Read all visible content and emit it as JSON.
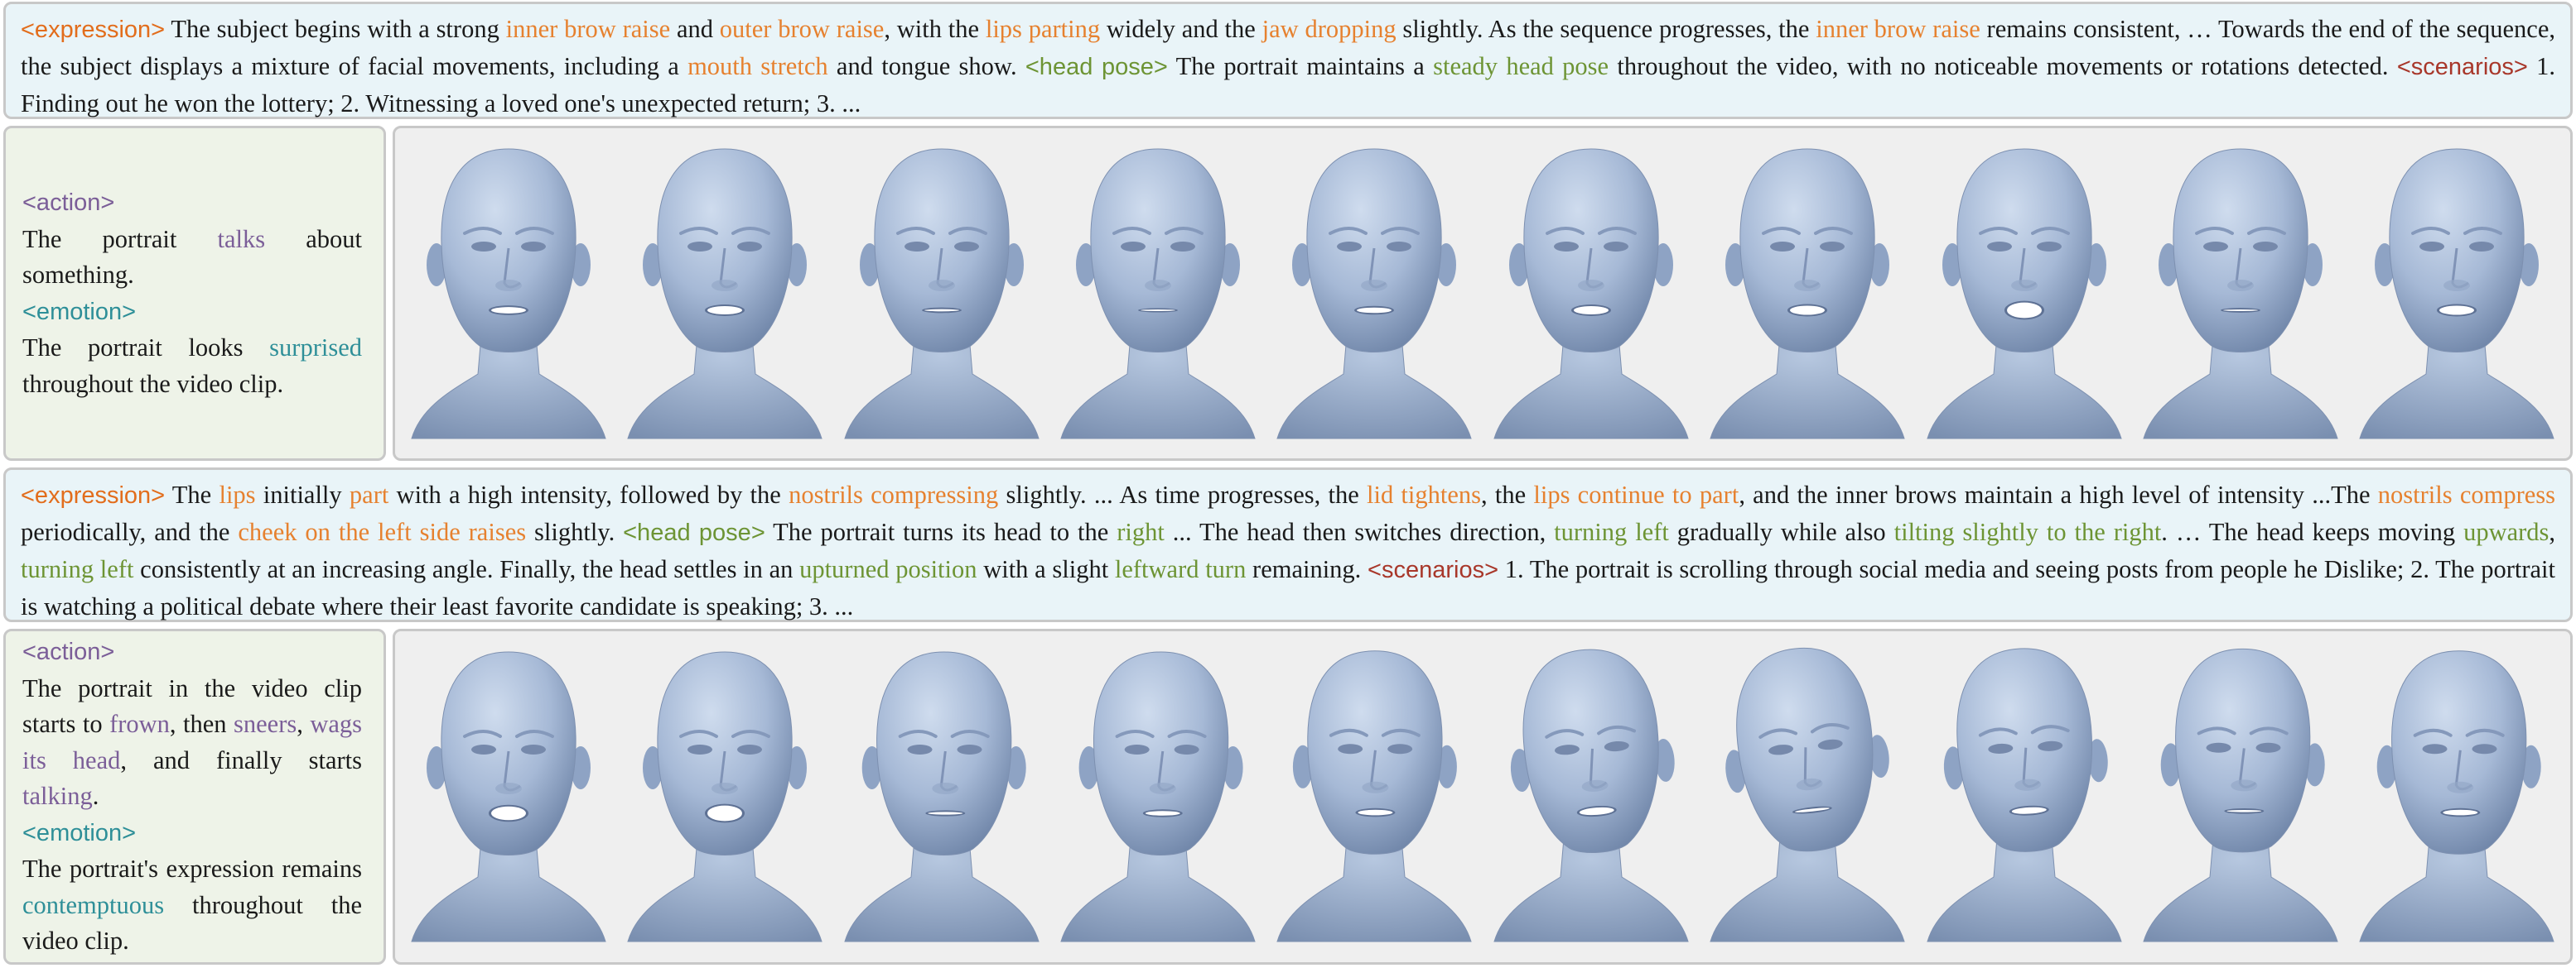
{
  "colors": {
    "expression_tag": "#e26d1c",
    "head_pose_tag": "#6d9434",
    "scenarios_tag": "#a8372a",
    "action_tag": "#7b5e98",
    "emotion_tag": "#2e8f98",
    "head_mesh": "#a9bcd8"
  },
  "row1": {
    "desc": [
      {
        "t": "<expression>",
        "c": "tag t-exp"
      },
      {
        "t": " The subject begins with a strong "
      },
      {
        "t": "inner brow raise",
        "c": "orange"
      },
      {
        "t": " and "
      },
      {
        "t": "outer brow raise",
        "c": "orange"
      },
      {
        "t": ", with the "
      },
      {
        "t": "lips parting",
        "c": "orange"
      },
      {
        "t": " widely and the "
      },
      {
        "t": "jaw dropping",
        "c": "orange"
      },
      {
        "t": " slightly. As the sequence progresses, the "
      },
      {
        "t": "inner brow raise",
        "c": "orange"
      },
      {
        "t": " remains consistent, … Towards the end of the sequence, the subject displays a mixture of facial movements, including a "
      },
      {
        "t": "mouth stretch",
        "c": "orange"
      },
      {
        "t": " and tongue show. "
      },
      {
        "t": "<head pose>",
        "c": "tag t-pose"
      },
      {
        "t": " The portrait maintains a "
      },
      {
        "t": "steady head pose",
        "c": "green-t"
      },
      {
        "t": " throughout the video, with no noticeable movements or rotations detected. "
      },
      {
        "t": "<scenarios>",
        "c": "tag t-scen"
      },
      {
        "t": " 1. Finding out he won the lottery; 2. Witnessing a loved one's unexpected return; 3. ..."
      }
    ],
    "side": [
      {
        "t": "<action>",
        "c": "tag t-act",
        "br": true
      },
      {
        "t": "The portrait "
      },
      {
        "t": "talks",
        "c": "purple"
      },
      {
        "t": " about something.",
        "br": true
      },
      {
        "t": "<emotion>",
        "c": "tag t-emo",
        "br": true
      },
      {
        "t": "The portrait looks "
      },
      {
        "t": "surprised",
        "c": "teal"
      },
      {
        "t": " throughout the video clip."
      }
    ],
    "faces": [
      {
        "name": "frame-1",
        "yaw": 0,
        "pitch": 0,
        "roll": 0,
        "mouth": 0.35
      },
      {
        "name": "frame-2",
        "yaw": 0,
        "pitch": 0,
        "roll": 0,
        "mouth": 0.45
      },
      {
        "name": "frame-3",
        "yaw": 0,
        "pitch": 0,
        "roll": 0,
        "mouth": 0.12
      },
      {
        "name": "frame-4",
        "yaw": 0,
        "pitch": 0,
        "roll": 0,
        "mouth": 0.05
      },
      {
        "name": "frame-5",
        "yaw": 0,
        "pitch": 0,
        "roll": 0,
        "mouth": 0.3
      },
      {
        "name": "frame-6",
        "yaw": 0,
        "pitch": 0,
        "roll": 0,
        "mouth": 0.45
      },
      {
        "name": "frame-7",
        "yaw": 0,
        "pitch": 0,
        "roll": 0,
        "mouth": 0.5
      },
      {
        "name": "frame-8",
        "yaw": 0,
        "pitch": 0,
        "roll": 0,
        "mouth": 0.85
      },
      {
        "name": "frame-9",
        "yaw": 0,
        "pitch": 0,
        "roll": 0,
        "mouth": 0.08
      },
      {
        "name": "frame-10",
        "yaw": 0,
        "pitch": 0,
        "roll": 0,
        "mouth": 0.5
      }
    ]
  },
  "row2": {
    "desc": [
      {
        "t": "<expression>",
        "c": "tag t-exp"
      },
      {
        "t": " The "
      },
      {
        "t": "lips",
        "c": "orange"
      },
      {
        "t": " initially "
      },
      {
        "t": "part",
        "c": "orange"
      },
      {
        "t": " with a high intensity, followed by the "
      },
      {
        "t": "nostrils compressing",
        "c": "orange"
      },
      {
        "t": " slightly. ... As time progresses, the "
      },
      {
        "t": "lid tightens",
        "c": "orange"
      },
      {
        "t": ", the "
      },
      {
        "t": "lips continue to part",
        "c": "orange"
      },
      {
        "t": ", and the inner brows maintain a high level of intensity ...The "
      },
      {
        "t": "nostrils compress",
        "c": "orange"
      },
      {
        "t": " periodically, and the "
      },
      {
        "t": "cheek on the left side raises",
        "c": "orange"
      },
      {
        "t": " slightly. "
      },
      {
        "t": "<head pose>",
        "c": "tag t-pose"
      },
      {
        "t": " The portrait turns its head to the "
      },
      {
        "t": "right",
        "c": "green-t"
      },
      {
        "t": " ... The head then switches direction, "
      },
      {
        "t": "turning left",
        "c": "green-t"
      },
      {
        "t": " gradually while also "
      },
      {
        "t": "tilting slightly to the right",
        "c": "green-t"
      },
      {
        "t": ". … The head keeps moving "
      },
      {
        "t": "upwards",
        "c": "green-t"
      },
      {
        "t": ", "
      },
      {
        "t": "turning left",
        "c": "green-t"
      },
      {
        "t": " consistently at an increasing angle. Finally, the head settles in an "
      },
      {
        "t": "upturned position",
        "c": "green-t"
      },
      {
        "t": " with a slight "
      },
      {
        "t": "leftward turn",
        "c": "green-t"
      },
      {
        "t": " remaining. "
      },
      {
        "t": "<scenarios>",
        "c": "tag t-scen"
      },
      {
        "t": " 1. The portrait is scrolling through social media and seeing posts from people he Dislike; 2. The portrait is watching a political debate where their least favorite candidate is speaking; 3. ..."
      }
    ],
    "side": [
      {
        "t": "<action>",
        "c": "tag t-act",
        "br": true
      },
      {
        "t": "The portrait in the video clip starts to "
      },
      {
        "t": "frown",
        "c": "purple"
      },
      {
        "t": ", then "
      },
      {
        "t": "sneers",
        "c": "purple"
      },
      {
        "t": ", "
      },
      {
        "t": "wags its head",
        "c": "purple"
      },
      {
        "t": ", and finally starts "
      },
      {
        "t": "talking",
        "c": "purple"
      },
      {
        "t": ".",
        "br": true
      },
      {
        "t": "<emotion>",
        "c": "tag t-emo",
        "br": true
      },
      {
        "t": "The portrait's expression remains "
      },
      {
        "t": "contemptuous",
        "c": "teal"
      },
      {
        "t": " throughout the video clip."
      }
    ],
    "faces": [
      {
        "name": "frame-1",
        "yaw": 0,
        "pitch": 0,
        "roll": 0,
        "mouth": 0.75
      },
      {
        "name": "frame-2",
        "yaw": 0,
        "pitch": 0,
        "roll": 0,
        "mouth": 0.85
      },
      {
        "name": "frame-3",
        "yaw": 0.15,
        "pitch": 0,
        "roll": 0,
        "mouth": 0.15
      },
      {
        "name": "frame-4",
        "yaw": 0.2,
        "pitch": 0,
        "roll": 0,
        "mouth": 0.25
      },
      {
        "name": "frame-5",
        "yaw": 0.05,
        "pitch": 0.1,
        "roll": 0,
        "mouth": 0.3
      },
      {
        "name": "frame-6",
        "yaw": 0.1,
        "pitch": 0.25,
        "roll": -4,
        "mouth": 0.4
      },
      {
        "name": "frame-7",
        "yaw": 0,
        "pitch": 0.4,
        "roll": -6,
        "mouth": 0.15
      },
      {
        "name": "frame-8",
        "yaw": 0.1,
        "pitch": 0.35,
        "roll": -3,
        "mouth": 0.35
      },
      {
        "name": "frame-9",
        "yaw": 0.15,
        "pitch": 0.3,
        "roll": 0,
        "mouth": 0.12
      },
      {
        "name": "frame-10",
        "yaw": 0.15,
        "pitch": 0.1,
        "roll": 0,
        "mouth": 0.3
      }
    ]
  }
}
